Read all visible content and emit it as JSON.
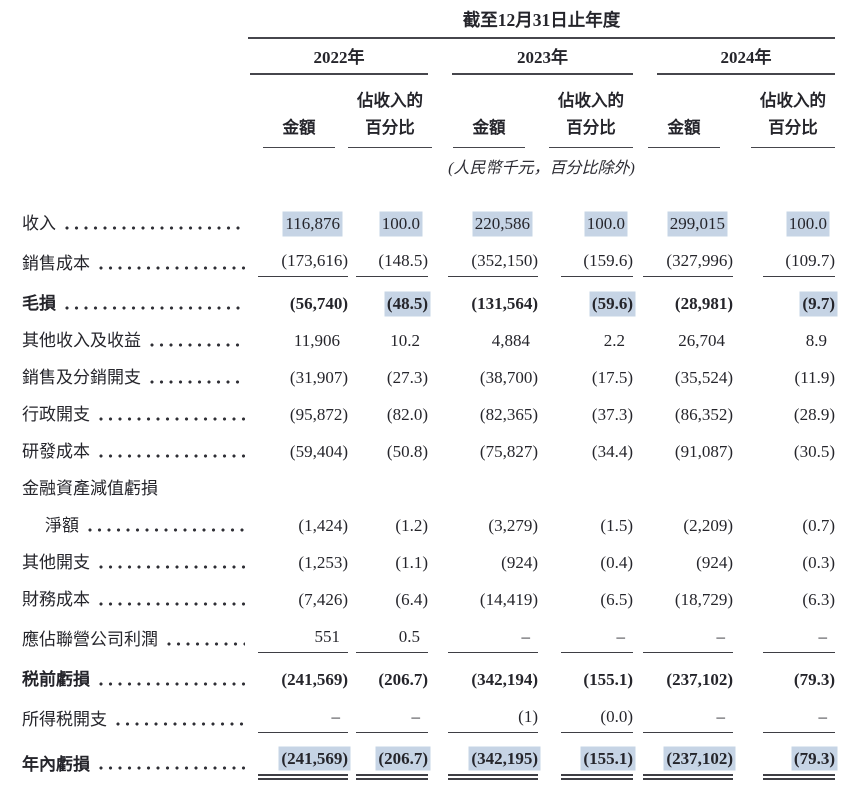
{
  "doc": {
    "title": "截至12月31日止年度",
    "unit_note": "(人民幣千元，百分比除外)",
    "years": [
      "2022年",
      "2023年",
      "2024年"
    ],
    "col_amount": "金額",
    "col_pct_line1": "佔收入的",
    "col_pct_line2": "百分比",
    "highlight_color": "#c6d4e5",
    "rows": [
      {
        "label": "收入",
        "leader": true,
        "bold": false,
        "indent": false,
        "rule": "none",
        "values": [
          "116,876",
          "100.0",
          "220,586",
          "100.0",
          "299,015",
          "100.0"
        ],
        "hl": [
          true,
          true,
          true,
          true,
          true,
          true
        ]
      },
      {
        "label": "銷售成本",
        "leader": true,
        "bold": false,
        "indent": false,
        "rule": "single",
        "values": [
          "(173,616)",
          "(148.5)",
          "(352,150)",
          "(159.6)",
          "(327,996)",
          "(109.7)"
        ],
        "hl": [
          false,
          false,
          false,
          false,
          false,
          false
        ]
      },
      {
        "label": "毛損",
        "leader": true,
        "bold": true,
        "indent": false,
        "rule": "none",
        "values": [
          "(56,740)",
          "(48.5)",
          "(131,564)",
          "(59.6)",
          "(28,981)",
          "(9.7)"
        ],
        "hl": [
          false,
          true,
          false,
          true,
          false,
          true
        ]
      },
      {
        "label": "其他收入及收益",
        "leader": true,
        "bold": false,
        "indent": false,
        "rule": "none",
        "values": [
          "11,906",
          "10.2",
          "4,884",
          "2.2",
          "26,704",
          "8.9"
        ],
        "hl": [
          false,
          false,
          false,
          false,
          false,
          false
        ]
      },
      {
        "label": "銷售及分銷開支",
        "leader": true,
        "bold": false,
        "indent": false,
        "rule": "none",
        "values": [
          "(31,907)",
          "(27.3)",
          "(38,700)",
          "(17.5)",
          "(35,524)",
          "(11.9)"
        ],
        "hl": [
          false,
          false,
          false,
          false,
          false,
          false
        ]
      },
      {
        "label": "行政開支",
        "leader": true,
        "bold": false,
        "indent": false,
        "rule": "none",
        "values": [
          "(95,872)",
          "(82.0)",
          "(82,365)",
          "(37.3)",
          "(86,352)",
          "(28.9)"
        ],
        "hl": [
          false,
          false,
          false,
          false,
          false,
          false
        ]
      },
      {
        "label": "研發成本",
        "leader": true,
        "bold": false,
        "indent": false,
        "rule": "none",
        "values": [
          "(59,404)",
          "(50.8)",
          "(75,827)",
          "(34.4)",
          "(91,087)",
          "(30.5)"
        ],
        "hl": [
          false,
          false,
          false,
          false,
          false,
          false
        ]
      },
      {
        "label": "金融資產減值虧損",
        "leader": false,
        "bold": false,
        "indent": false,
        "rule": "none",
        "values": [
          "",
          "",
          "",
          "",
          "",
          ""
        ],
        "hl": [
          false,
          false,
          false,
          false,
          false,
          false
        ]
      },
      {
        "label": "淨額",
        "leader": true,
        "bold": false,
        "indent": true,
        "rule": "none",
        "values": [
          "(1,424)",
          "(1.2)",
          "(3,279)",
          "(1.5)",
          "(2,209)",
          "(0.7)"
        ],
        "hl": [
          false,
          false,
          false,
          false,
          false,
          false
        ]
      },
      {
        "label": "其他開支",
        "leader": true,
        "bold": false,
        "indent": false,
        "rule": "none",
        "values": [
          "(1,253)",
          "(1.1)",
          "(924)",
          "(0.4)",
          "(924)",
          "(0.3)"
        ],
        "hl": [
          false,
          false,
          false,
          false,
          false,
          false
        ]
      },
      {
        "label": "財務成本",
        "leader": true,
        "bold": false,
        "indent": false,
        "rule": "none",
        "values": [
          "(7,426)",
          "(6.4)",
          "(14,419)",
          "(6.5)",
          "(18,729)",
          "(6.3)"
        ],
        "hl": [
          false,
          false,
          false,
          false,
          false,
          false
        ]
      },
      {
        "label": "應佔聯營公司利潤",
        "leader": true,
        "bold": false,
        "indent": false,
        "rule": "single",
        "values": [
          "551",
          "0.5",
          "–",
          "–",
          "–",
          "–"
        ],
        "hl": [
          false,
          false,
          false,
          false,
          false,
          false
        ]
      },
      {
        "label": "税前虧損",
        "leader": true,
        "bold": true,
        "indent": false,
        "rule": "none",
        "values": [
          "(241,569)",
          "(206.7)",
          "(342,194)",
          "(155.1)",
          "(237,102)",
          "(79.3)"
        ],
        "hl": [
          false,
          false,
          false,
          false,
          false,
          false
        ]
      },
      {
        "label": "所得税開支",
        "leader": true,
        "bold": false,
        "indent": false,
        "rule": "single",
        "values": [
          "–",
          "–",
          "(1)",
          "(0.0)",
          "–",
          "–"
        ],
        "hl": [
          false,
          false,
          false,
          false,
          false,
          false
        ]
      },
      {
        "label": "年內虧損",
        "leader": true,
        "bold": true,
        "indent": false,
        "rule": "double",
        "values": [
          "(241,569)",
          "(206.7)",
          "(342,195)",
          "(155.1)",
          "(237,102)",
          "(79.3)"
        ],
        "hl": [
          true,
          true,
          true,
          true,
          true,
          true
        ]
      }
    ]
  }
}
